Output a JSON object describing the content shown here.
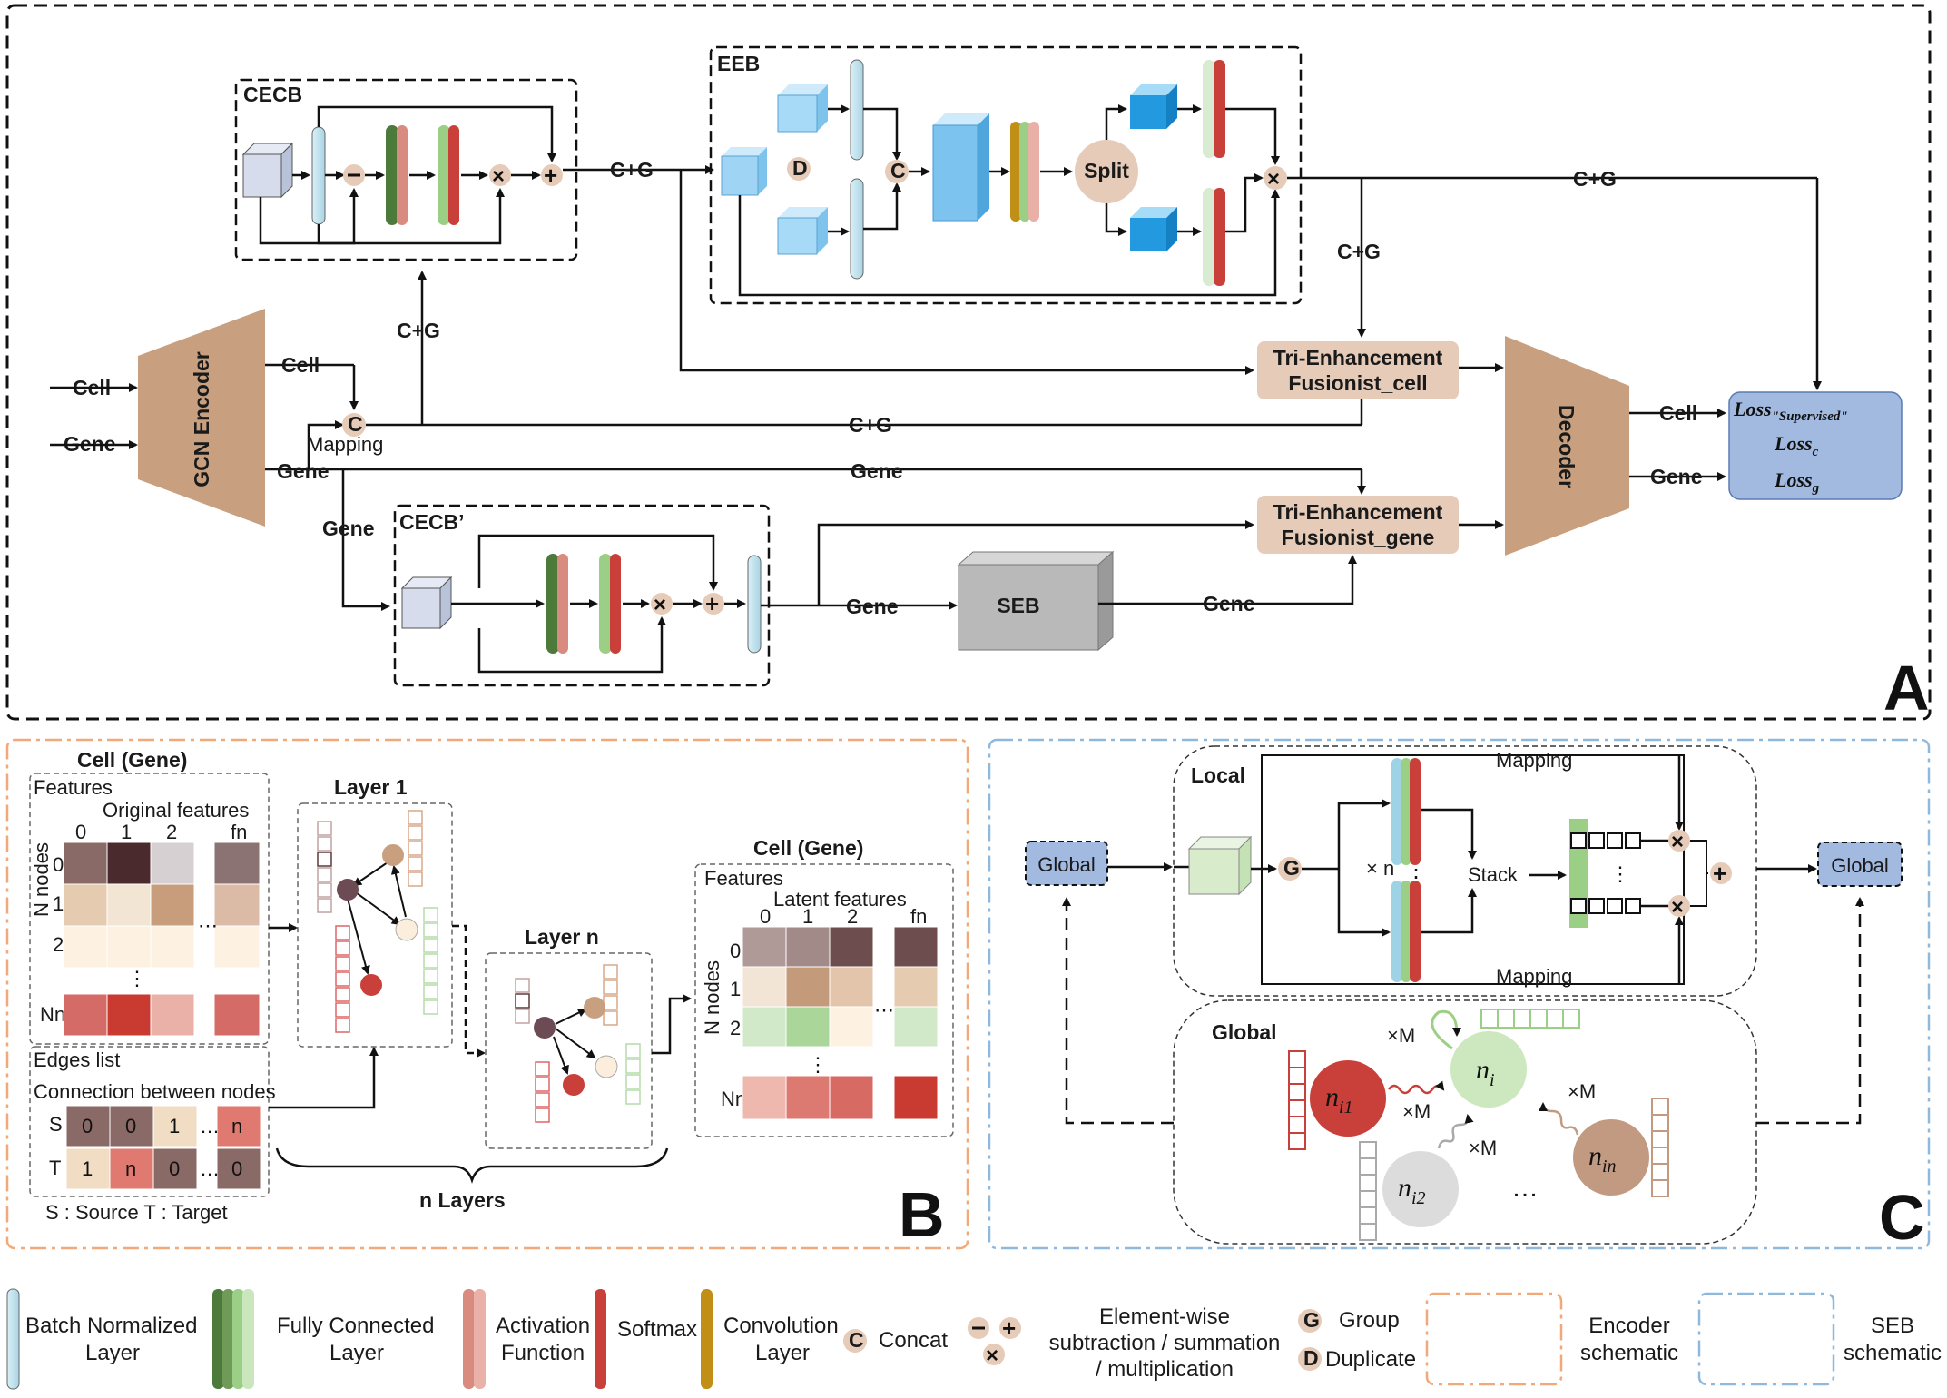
{
  "panel_a": {
    "letter": "A",
    "inputs": {
      "cell": "Cell",
      "gene": "Gene"
    },
    "encoder": "GCN Encoder",
    "decoder": "Decoder",
    "cecb": "CECB",
    "cecb_prime": "CECB’",
    "eeb": "EEB",
    "seb": "SEB",
    "split": "Split",
    "mapping": "Mapping",
    "concat_symbol": "C",
    "duplicate_symbol": "D",
    "tri_cell": [
      "Tri-Enhancement",
      "Fusionist_cell"
    ],
    "tri_gene": [
      "Tri-Enhancement",
      "Fusionist_gene"
    ],
    "edge_labels": {
      "cg": "C+G",
      "cell": "Cell",
      "gene": "Gene"
    },
    "loss": {
      "supervised": "Loss",
      "supervised_sub": "\"Supervised\"",
      "c": "Loss",
      "c_sub": "c",
      "g": "Loss",
      "g_sub": "g"
    }
  },
  "panel_b": {
    "letter": "B",
    "title_in": "Cell (Gene)",
    "features": "Features",
    "original_features": "Original features",
    "cols": [
      "0",
      "1",
      "2",
      "fn"
    ],
    "rows": [
      "0",
      "1",
      "2",
      "Nn"
    ],
    "n_nodes": "N nodes",
    "edges_list": "Edges list",
    "connection": "Connection between nodes",
    "edge_rows": [
      {
        "label": "S",
        "cells": [
          "0",
          "0",
          "1",
          "…",
          "n"
        ]
      },
      {
        "label": "T",
        "cells": [
          "1",
          "n",
          "0",
          "…",
          "0"
        ]
      }
    ],
    "source_target": "S : Source   T : Target",
    "layer1": "Layer 1",
    "layern": "Layer n",
    "n_layers": "n Layers",
    "title_out": "Cell (Gene)",
    "latent_features": "Latent features"
  },
  "panel_c": {
    "letter": "C",
    "local": "Local",
    "global_title": "Global",
    "global_box_left": "Global",
    "global_box_right": "Global",
    "group_symbol": "G",
    "times_n": "× n",
    "stack": "Stack",
    "mapping_top": "Mapping",
    "mapping_bottom": "Mapping",
    "times_m": "×M",
    "nodes": {
      "ni": "n",
      "ni_sub": "i",
      "ni1_sub": "i1",
      "ni2_sub": "i2",
      "nin_sub": "in"
    },
    "ellipsis": "…"
  },
  "legend": {
    "bn": [
      "Batch Normalized",
      "Layer"
    ],
    "fc": [
      "Fully Connected",
      "Layer"
    ],
    "act": [
      "Activation",
      "Function"
    ],
    "softmax": "Softmax",
    "conv": [
      "Convolution",
      "Layer"
    ],
    "concat": "Concat",
    "elementwise": [
      "Element-wise",
      "subtraction / summation",
      "/ multiplication"
    ],
    "group": "Group",
    "duplicate": "Duplicate",
    "encoder_schematic": [
      "Encoder",
      "schematic"
    ],
    "seb_schematic": [
      "SEB",
      "schematic"
    ]
  },
  "colors": {
    "brown": "#c8a080",
    "pale_blue": "#c6e6ef",
    "cube_blue": "#5ab4e8",
    "dark_green": "#4c7a3a",
    "light_green": "#9ccf86",
    "red": "#c9403a",
    "loss_box": "#a2b9e0",
    "tri_box": "#e5cbb8",
    "orange_dash": "#f2a878",
    "blue_dash": "#8fb9dc"
  }
}
